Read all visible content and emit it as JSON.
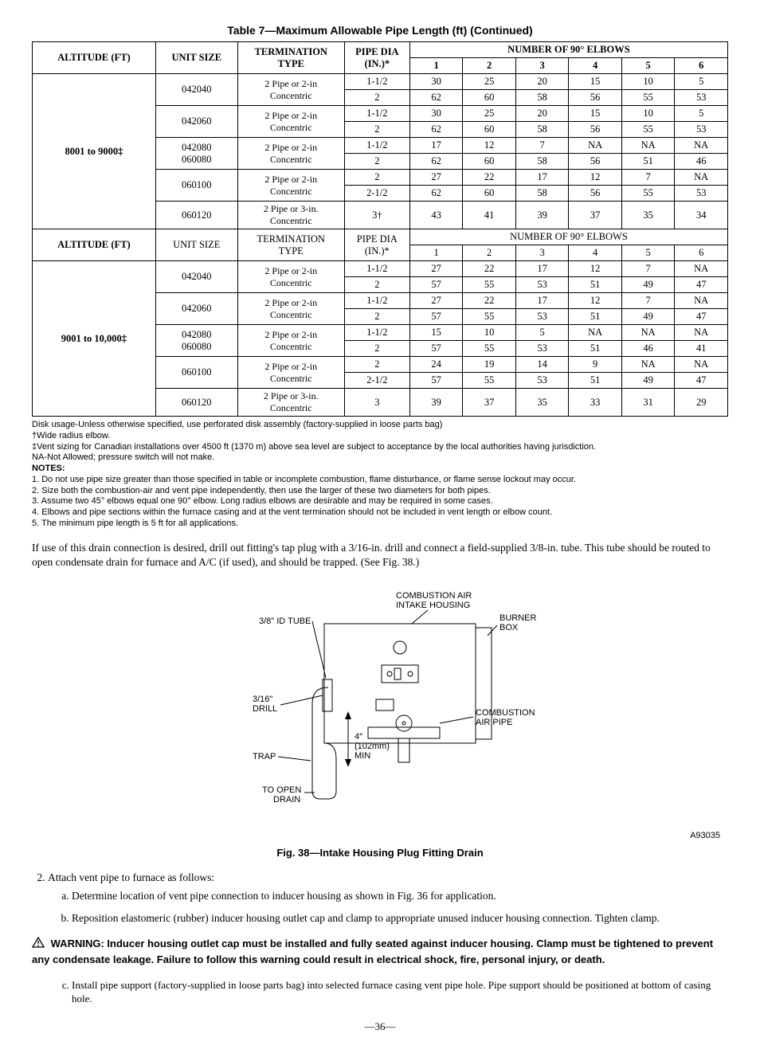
{
  "table_title": "Table 7—Maximum Allowable Pipe Length (ft) (Continued)",
  "headers": {
    "altitude": "ALTITUDE (FT)",
    "unit_size": "UNIT SIZE",
    "term_type_l1": "TERMINATION",
    "term_type_l2": "TYPE",
    "pipe_dia_l1": "PIPE DIA",
    "pipe_dia_l2": "(IN.)*",
    "elbows": "NUMBER OF 90° ELBOWS",
    "cols": [
      "1",
      "2",
      "3",
      "4",
      "5",
      "6"
    ]
  },
  "section1": {
    "altitude": "8001 to 9000‡",
    "rows": [
      {
        "unit": "042040",
        "term": "2 Pipe or 2-in Concentric",
        "rowspan": 1,
        "pipes": [
          {
            "dia": "1-1/2",
            "v": [
              "30",
              "25",
              "20",
              "15",
              "10",
              "5"
            ]
          },
          {
            "dia": "2",
            "v": [
              "62",
              "60",
              "58",
              "56",
              "55",
              "53"
            ]
          }
        ]
      },
      {
        "unit": "042060",
        "term": "2 Pipe or 2-in Concentric",
        "rowspan": 1,
        "pipes": [
          {
            "dia": "1-1/2",
            "v": [
              "30",
              "25",
              "20",
              "15",
              "10",
              "5"
            ]
          },
          {
            "dia": "2",
            "v": [
              "62",
              "60",
              "58",
              "56",
              "55",
              "53"
            ]
          }
        ]
      },
      {
        "unit": "042080\n060080",
        "term": "2 Pipe or 2-in Concentric",
        "rowspan": 1,
        "pipes": [
          {
            "dia": "1-1/2",
            "v": [
              "17",
              "12",
              "7",
              "NA",
              "NA",
              "NA"
            ]
          },
          {
            "dia": "2",
            "v": [
              "62",
              "60",
              "58",
              "56",
              "51",
              "46"
            ]
          }
        ]
      },
      {
        "unit": "060100",
        "term": "2 Pipe or 2-in Concentric",
        "rowspan": 1,
        "pipes": [
          {
            "dia": "2",
            "v": [
              "27",
              "22",
              "17",
              "12",
              "7",
              "NA"
            ]
          },
          {
            "dia": "2-1/2",
            "v": [
              "62",
              "60",
              "58",
              "56",
              "55",
              "53"
            ]
          }
        ]
      },
      {
        "unit": "060120",
        "term": "2 Pipe or 3-in. Concentric",
        "rowspan": 1,
        "pipes": [
          {
            "dia": "3†",
            "v": [
              "43",
              "41",
              "39",
              "37",
              "35",
              "34"
            ]
          }
        ]
      }
    ]
  },
  "mid_headers": {
    "altitude": "ALTITUDE (FT)",
    "unit_size": "UNIT SIZE",
    "term_type_l1": "TERMINATION",
    "term_type_l2": "TYPE",
    "pipe_dia_l1": "PIPE DIA",
    "pipe_dia_l2": "(IN.)*",
    "elbows": "NUMBER OF 90° ELBOWS",
    "cols": [
      "1",
      "2",
      "3",
      "4",
      "5",
      "6"
    ]
  },
  "section2": {
    "altitude": "9001 to 10,000‡",
    "rows": [
      {
        "unit": "042040",
        "term": "2 Pipe or 2-in Concentric",
        "pipes": [
          {
            "dia": "1-1/2",
            "v": [
              "27",
              "22",
              "17",
              "12",
              "7",
              "NA"
            ]
          },
          {
            "dia": "2",
            "v": [
              "57",
              "55",
              "53",
              "51",
              "49",
              "47"
            ]
          }
        ]
      },
      {
        "unit": "042060",
        "term": "2 Pipe or 2-in Concentric",
        "pipes": [
          {
            "dia": "1-1/2",
            "v": [
              "27",
              "22",
              "17",
              "12",
              "7",
              "NA"
            ]
          },
          {
            "dia": "2",
            "v": [
              "57",
              "55",
              "53",
              "51",
              "49",
              "47"
            ]
          }
        ]
      },
      {
        "unit": "042080\n060080",
        "term": "2 Pipe or 2-in Concentric",
        "pipes": [
          {
            "dia": "1-1/2",
            "v": [
              "15",
              "10",
              "5",
              "NA",
              "NA",
              "NA"
            ]
          },
          {
            "dia": "2",
            "v": [
              "57",
              "55",
              "53",
              "51",
              "46",
              "41"
            ]
          }
        ]
      },
      {
        "unit": "060100",
        "term": "2 Pipe or 2-in Concentric",
        "pipes": [
          {
            "dia": "2",
            "v": [
              "24",
              "19",
              "14",
              "9",
              "NA",
              "NA"
            ]
          },
          {
            "dia": "2-1/2",
            "v": [
              "57",
              "55",
              "53",
              "51",
              "49",
              "47"
            ]
          }
        ]
      },
      {
        "unit": "060120",
        "term": "2 Pipe or 3-in. Concentric",
        "pipes": [
          {
            "dia": "3",
            "v": [
              "39",
              "37",
              "35",
              "33",
              "31",
              "29"
            ]
          }
        ]
      }
    ]
  },
  "footnotes": [
    "Disk usage-Unless otherwise specified, use perforated disk assembly (factory-supplied in loose parts bag)",
    "†Wide radius elbow.",
    "‡Vent sizing for Canadian installations over 4500 ft (1370 m) above sea level are subject to acceptance by the local authorities having jurisdiction.",
    "NA-Not Allowed; pressure switch will not make."
  ],
  "notes_label": "NOTES:",
  "notes": [
    "1. Do not use pipe size greater than those specified in table or incomplete combustion, flame disturbance, or flame sense lockout may occur.",
    "2. Size both the combustion-air and vent pipe independently, then use the larger of these two diameters for both pipes.",
    "3. Assume two 45° elbows equal one 90° elbow. Long radius elbows are desirable and may be required in some cases.",
    "4. Elbows and pipe sections within the furnace casing and at the vent termination should not be included in vent length or elbow count.",
    "5. The minimum pipe length is 5 ft for all applications."
  ],
  "body_para": "If use of this drain connection is desired, drill out fitting's tap plug with a 3/16-in. drill and connect a field-supplied 3/8-in. tube. This tube should be routed to open condensate drain for furnace and A/C (if used), and should be trapped. (See Fig. 38.)",
  "diagram": {
    "labels": {
      "combustion_air_intake_l1": "COMBUSTION AIR",
      "combustion_air_intake_l2": "INTAKE HOUSING",
      "burner_l1": "BURNER",
      "burner_l2": "BOX",
      "tube": "3/8\" ID TUBE",
      "drill_l1": "3/16\"",
      "drill_l2": "DRILL",
      "trap": "TRAP",
      "to_open_l1": "TO OPEN",
      "to_open_l2": "DRAIN",
      "dim_l1": "4″",
      "dim_l2": "(102mm)",
      "dim_l3": "MIN",
      "combustion_pipe_l1": "COMBUSTION",
      "combustion_pipe_l2": "AIR PIPE"
    },
    "ref": "A93035"
  },
  "fig_caption": "Fig. 38—Intake Housing Plug Fitting Drain",
  "step2": "Attach vent pipe to furnace as follows:",
  "step2_a": "Determine location of vent pipe connection to inducer housing as shown in Fig. 36 for application.",
  "step2_b": "Reposition elastomeric (rubber) inducer housing outlet cap and clamp to appropriate unused inducer housing connection. Tighten clamp.",
  "warning_label": "WARNING:",
  "warning_text": "Inducer housing outlet cap must be installed and fully seated against inducer housing. Clamp must be tightened to prevent any condensate leakage. Failure to follow this warning could result in electrical shock, fire, personal injury, or death.",
  "step2_c": "Install pipe support (factory-supplied in loose parts bag) into selected furnace casing vent pipe hole. Pipe support should be positioned at bottom of casing hole.",
  "page_num": "—36—"
}
